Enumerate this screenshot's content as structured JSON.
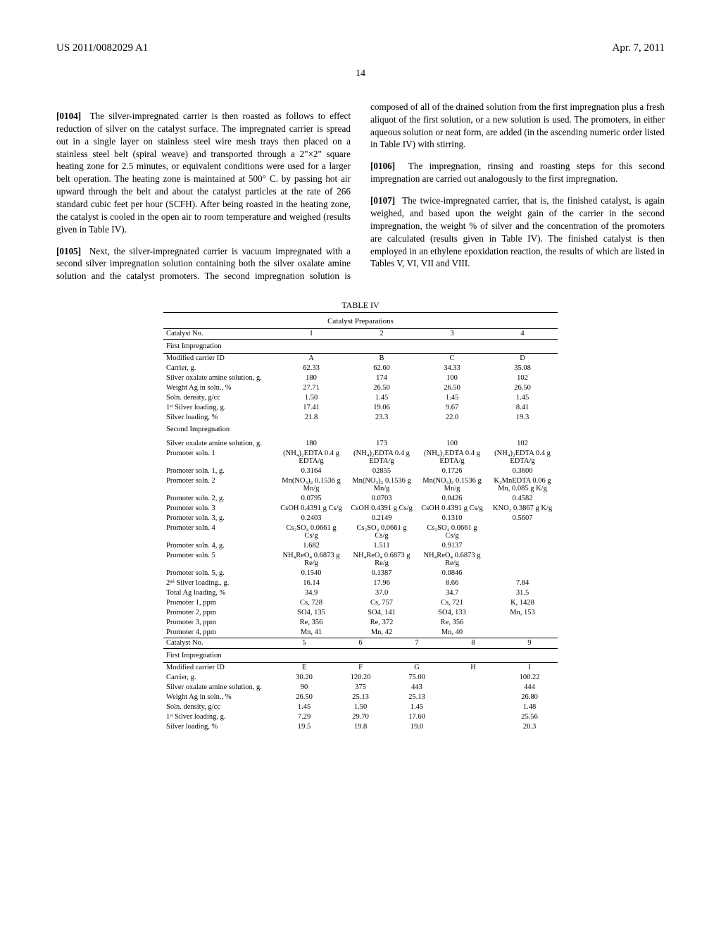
{
  "header": {
    "pubNumber": "US 2011/0082029 A1",
    "date": "Apr. 7, 2011",
    "pageNumber": "14"
  },
  "paragraphs": {
    "p104": {
      "num": "[0104]",
      "text": "The silver-impregnated carrier is then roasted as follows to effect reduction of silver on the catalyst surface. The impregnated carrier is spread out in a single layer on stainless steel wire mesh trays then placed on a stainless steel belt (spiral weave) and transported through a 2\"×2\" square heating zone for 2.5 minutes, or equivalent conditions were used for a larger belt operation. The heating zone is maintained at 500° C. by passing hot air upward through the belt and about the catalyst particles at the rate of 266 standard cubic feet per hour (SCFH). After being roasted in the heating zone, the catalyst is cooled in the open air to room temperature and weighed (results given in Table IV)."
    },
    "p105": {
      "num": "[0105]",
      "text": "Next, the silver-impregnated carrier is vacuum impregnated with a second silver impregnation solution containing both the silver oxalate amine solution and the catalyst promoters. The second impregnation solution is composed of all of the drained solution from the first impregnation plus a fresh aliquot of the first solution, or a new solution is used. The promoters, in either aqueous solution or neat form, are added (in the ascending numeric order listed in Table IV) with stirring."
    },
    "p106": {
      "num": "[0106]",
      "text": "The impregnation, rinsing and roasting steps for this second impregnation are carried out analogously to the first impregnation."
    },
    "p107": {
      "num": "[0107]",
      "text": "The twice-impregnated carrier, that is, the finished catalyst, is again weighed, and based upon the weight gain of the carrier in the second impregnation, the weight % of silver and the concentration of the promoters are calculated (results given in Table IV). The finished catalyst is then employed in an ethylene epoxidation reaction, the results of which are listed in Tables V, VI, VII and VIII."
    }
  },
  "tableIV": {
    "title": "TABLE IV",
    "subtitle": "Catalyst Preparations",
    "blockA": {
      "header": [
        "Catalyst No.",
        "1",
        "2",
        "3",
        "4"
      ],
      "section1": "First Impregnation",
      "rows1": [
        [
          "Modified carrier ID",
          "A",
          "B",
          "C",
          "D"
        ],
        [
          "Carrier, g.",
          "62.33",
          "62.60",
          "34.33",
          "35.08"
        ],
        [
          "Silver oxalate amine solution, g.",
          "180",
          "174",
          "100",
          "102"
        ],
        [
          "Weight Ag in soln., %",
          "27.71",
          "26.50",
          "26.50",
          "26.50"
        ],
        [
          "Soln. density, g/cc",
          "1.50",
          "1.45",
          "1.45",
          "1.45"
        ],
        [
          "1ˢᵗ Silver loading, g.",
          "17.41",
          "19.06",
          "9.67",
          "8.41"
        ],
        [
          "Silver loading, %",
          "21.8",
          "23.3",
          "22.0",
          "19.3"
        ]
      ],
      "section2": "Second Impregnation",
      "rows2": [
        [
          "Silver oxalate amine solution, g.",
          "180",
          "173",
          "100",
          "102"
        ],
        [
          "Promoter soln. 1",
          "(NH₄)₂EDTA 0.4 g EDTA/g",
          "(NH₄)₂EDTA 0.4 g EDTA/g",
          "(NH₄)₂EDTA 0.4 g EDTA/g",
          "(NH₄)₂EDTA 0.4 g EDTA/g"
        ],
        [
          "Promoter soln. 1, g.",
          "0.3164",
          "02855",
          "0.1726",
          "0.3600"
        ],
        [
          "Promoter soln. 2",
          "Mn(NO₃)₂ 0.1536 g Mn/g",
          "Mn(NO₃)₂ 0.1536 g Mn/g",
          "Mn(NO₃)₂ 0.1536 g Mn/g",
          "K₂MnEDTA 0.06 g Mn, 0.085 g K/g"
        ],
        [
          "Promoter soln. 2, g.",
          "0.0795",
          "0.0703",
          "0.0426",
          "0.4582"
        ],
        [
          "Promoter soln. 3",
          "CsOH 0.4391 g Cs/g",
          "CsOH 0.4391 g Cs/g",
          "CsOH 0.4391 g Cs/g",
          "KNO₃ 0.3867 g K/g"
        ],
        [
          "Promoter soln. 3, g.",
          "0.2403",
          "0.2149",
          "0.1310",
          "0.5607"
        ],
        [
          "Promoter soln. 4",
          "Cs₂SO₄ 0.0661 g Cs/g",
          "Cs₂SO₄ 0.0661 g Cs/g",
          "Cs₂SO₄ 0.0661 g Cs/g",
          ""
        ],
        [
          "Promoter soln. 4, g.",
          "1.682",
          "1.511",
          "0.9137",
          ""
        ],
        [
          "Promoter soln. 5",
          "NH₄ReO₄ 0.6873 g Re/g",
          "NH₄ReO₄ 0.6873 g Re/g",
          "NH₄ReO₄ 0.6873 g Re/g",
          ""
        ],
        [
          "Promoter soln. 5, g.",
          "0.1540",
          "0.1387",
          "0.0846",
          ""
        ],
        [
          "2ⁿᵈ Silver loading., g.",
          "16.14",
          "17.96",
          "8.66",
          "7.84"
        ],
        [
          "Total Ag loading, %",
          "34.9",
          "37.0",
          "34.7",
          "31.5"
        ],
        [
          "Promoter 1, ppm",
          "Cs, 728",
          "Cs, 757",
          "Cs, 721",
          "K, 1428"
        ],
        [
          "Promoter 2, ppm",
          "SO4, 135",
          "SO4, 141",
          "SO4, 133",
          "Mn, 153"
        ],
        [
          "Promoter 3, ppm",
          "Re, 356",
          "Re, 372",
          "Re, 356",
          ""
        ],
        [
          "Promoter 4, ppm",
          "Mn, 41",
          "Mn, 42",
          "Mn, 40",
          ""
        ]
      ]
    },
    "blockB": {
      "header": [
        "Catalyst No.",
        "5",
        "6",
        "7",
        "8",
        "9"
      ],
      "section1": "First Impregnation",
      "rows1": [
        [
          "Modified carrier ID",
          "E",
          "F",
          "G",
          "H",
          "I"
        ],
        [
          "Carrier, g.",
          "30.20",
          "120.20",
          "75.00",
          "",
          "100.22"
        ],
        [
          "Silver oxalate amine solution, g.",
          "90",
          "375",
          "443",
          "",
          "444"
        ],
        [
          "Weight Ag in soln., %",
          "26.50",
          "25.13",
          "25.13",
          "",
          "26.80"
        ],
        [
          "Soln. density, g/cc",
          "1.45",
          "1.50",
          "1.45",
          "",
          "1.48"
        ],
        [
          "1ˢᵗ Silver loading, g.",
          "7.29",
          "29.70",
          "17.60",
          "",
          "25.56"
        ],
        [
          "Silver loading, %",
          "19.5",
          "19.8",
          "19.0",
          "",
          "20.3"
        ]
      ]
    }
  }
}
